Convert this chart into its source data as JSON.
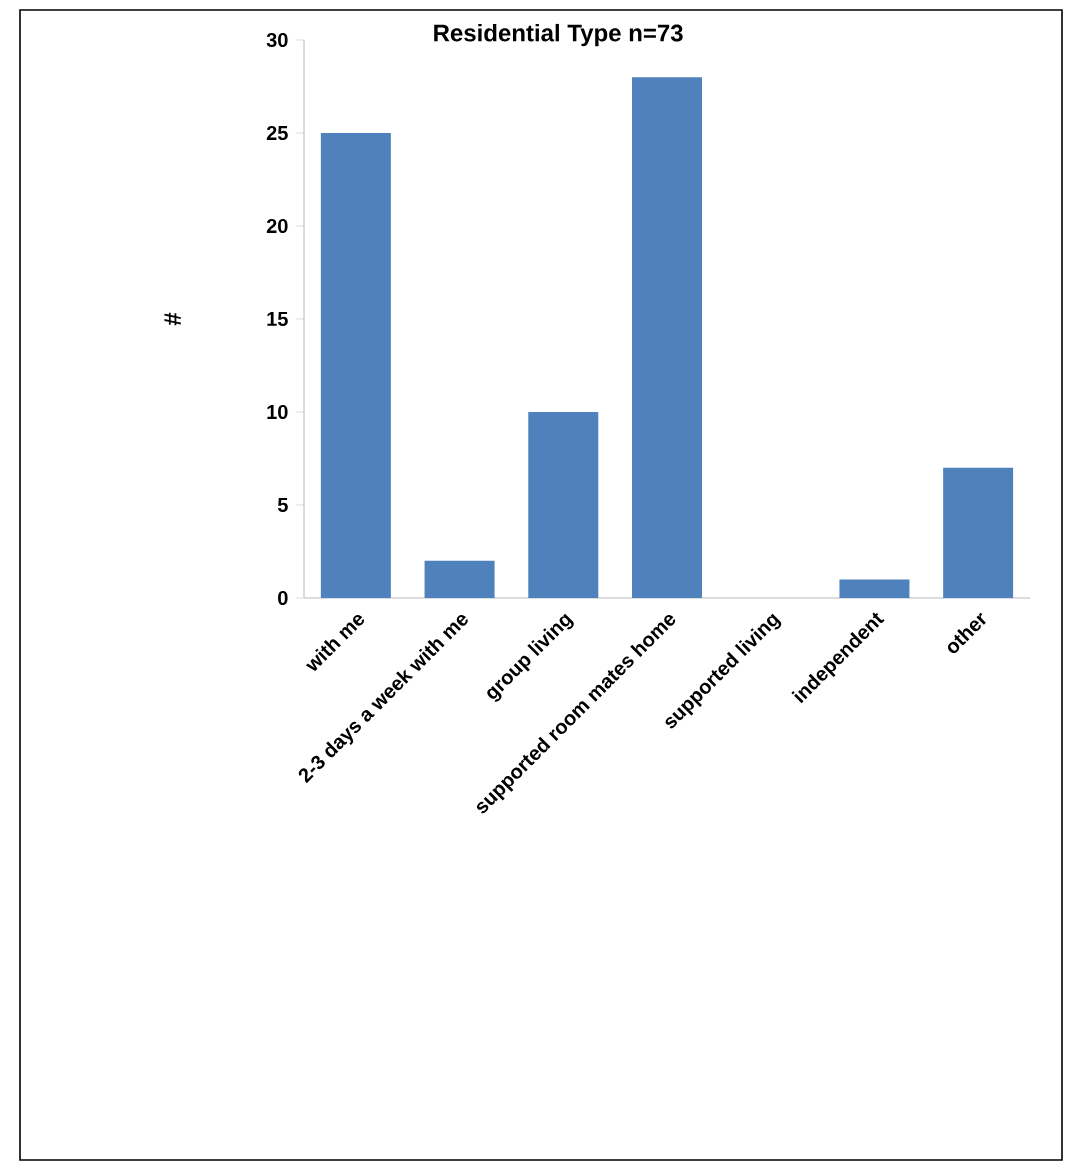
{
  "chart_data": {
    "type": "bar",
    "title": "Residential Type n=73",
    "ylabel": "#",
    "categories": [
      "with me",
      "2-3 days a week with me",
      "group living",
      "supported room mates home",
      "supported living",
      "independent",
      "other"
    ],
    "values": [
      25,
      2,
      10,
      28,
      0,
      1,
      7
    ],
    "color": "#4f81bd",
    "ylim": [
      0,
      30
    ],
    "yticks": [
      0,
      5,
      10,
      15,
      20,
      25,
      30
    ],
    "grid": false
  }
}
